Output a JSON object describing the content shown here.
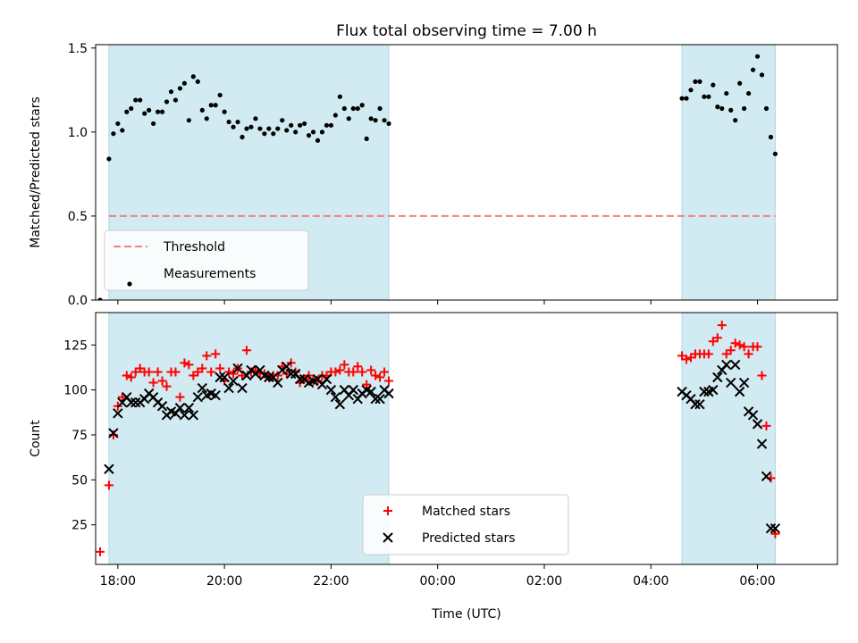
{
  "title": "Flux total observing time = 7.00 h",
  "xlabel": "Time (UTC)",
  "x_ticks": [
    "18:00",
    "20:00",
    "22:00",
    "00:00",
    "02:00",
    "04:00",
    "06:00"
  ],
  "shade_color": "#add8e6",
  "chart_data": [
    {
      "type": "scatter",
      "ylabel": "Matched/Predicted stars",
      "xlim": [
        "17:35",
        "07:30"
      ],
      "ylim": [
        0,
        1.52
      ],
      "y_ticks": [
        0.0,
        0.5,
        1.0,
        1.5
      ],
      "y_tick_labels": [
        "0.0",
        "0.5",
        "1.0",
        "1.5"
      ],
      "shaded_intervals": [
        [
          "17:50",
          "23:05"
        ],
        [
          "04:35",
          "06:20"
        ]
      ],
      "legend_position": "lower-left",
      "threshold": {
        "name": "Threshold",
        "value": 0.5,
        "x_range": [
          "17:50",
          "06:20"
        ],
        "color": "#f08080",
        "style": "dashed"
      },
      "series": [
        {
          "name": "Measurements",
          "marker": "dot",
          "color": "#000000",
          "x": [
            "17:40",
            "17:50",
            "17:55",
            "18:00",
            "18:05",
            "18:10",
            "18:15",
            "18:20",
            "18:25",
            "18:30",
            "18:35",
            "18:40",
            "18:45",
            "18:50",
            "18:55",
            "19:00",
            "19:05",
            "19:10",
            "19:15",
            "19:20",
            "19:25",
            "19:30",
            "19:35",
            "19:40",
            "19:45",
            "19:50",
            "19:55",
            "20:00",
            "20:05",
            "20:10",
            "20:15",
            "20:20",
            "20:25",
            "20:30",
            "20:35",
            "20:40",
            "20:45",
            "20:50",
            "20:55",
            "21:00",
            "21:05",
            "21:10",
            "21:15",
            "21:20",
            "21:25",
            "21:30",
            "21:35",
            "21:40",
            "21:45",
            "21:50",
            "21:55",
            "22:00",
            "22:05",
            "22:10",
            "22:15",
            "22:20",
            "22:25",
            "22:30",
            "22:35",
            "22:40",
            "22:45",
            "22:50",
            "22:55",
            "23:00",
            "23:05",
            "04:35",
            "04:40",
            "04:45",
            "04:50",
            "04:55",
            "05:00",
            "05:05",
            "05:10",
            "05:15",
            "05:20",
            "05:25",
            "05:30",
            "05:35",
            "05:40",
            "05:45",
            "05:50",
            "05:55",
            "06:00",
            "06:05",
            "06:10",
            "06:15",
            "06:20"
          ],
          "y": [
            0.0,
            0.84,
            0.99,
            1.05,
            1.01,
            1.12,
            1.14,
            1.19,
            1.19,
            1.11,
            1.13,
            1.05,
            1.12,
            1.12,
            1.18,
            1.24,
            1.19,
            1.26,
            1.29,
            1.07,
            1.33,
            1.3,
            1.13,
            1.08,
            1.16,
            1.16,
            1.22,
            1.12,
            1.06,
            1.03,
            1.06,
            0.97,
            1.02,
            1.03,
            1.08,
            1.02,
            0.99,
            1.02,
            0.99,
            1.02,
            1.07,
            1.01,
            1.04,
            1.0,
            1.04,
            1.05,
            0.98,
            1.0,
            0.95,
            1.0,
            1.04,
            1.04,
            1.1,
            1.21,
            1.14,
            1.08,
            1.14,
            1.14,
            1.16,
            0.96,
            1.08,
            1.07,
            1.14,
            1.07,
            1.05,
            1.2,
            1.2,
            1.25,
            1.3,
            1.3,
            1.21,
            1.21,
            1.28,
            1.15,
            1.14,
            1.23,
            1.13,
            1.07,
            1.29,
            1.14,
            1.23,
            1.37,
            1.45,
            1.34,
            1.14,
            0.97,
            0.87
          ]
        }
      ]
    },
    {
      "type": "scatter",
      "ylabel": "Count",
      "xlim": [
        "17:35",
        "07:30"
      ],
      "ylim": [
        3,
        143
      ],
      "y_ticks": [
        25,
        50,
        75,
        100,
        125
      ],
      "y_tick_labels": [
        "25",
        "50",
        "75",
        "100",
        "125"
      ],
      "shaded_intervals": [
        [
          "17:50",
          "23:05"
        ],
        [
          "04:35",
          "06:20"
        ]
      ],
      "legend_position": "lower-center",
      "series": [
        {
          "name": "Matched stars",
          "marker": "plus",
          "color": "#ff0000",
          "x": [
            "17:40",
            "17:50",
            "17:55",
            "18:00",
            "18:05",
            "18:10",
            "18:15",
            "18:20",
            "18:25",
            "18:30",
            "18:35",
            "18:40",
            "18:45",
            "18:50",
            "18:55",
            "19:00",
            "19:05",
            "19:10",
            "19:15",
            "19:20",
            "19:25",
            "19:30",
            "19:35",
            "19:40",
            "19:45",
            "19:50",
            "19:55",
            "20:00",
            "20:05",
            "20:10",
            "20:15",
            "20:20",
            "20:25",
            "20:30",
            "20:35",
            "20:40",
            "20:45",
            "20:50",
            "20:55",
            "21:00",
            "21:05",
            "21:10",
            "21:15",
            "21:20",
            "21:25",
            "21:30",
            "21:35",
            "21:40",
            "21:45",
            "21:50",
            "21:55",
            "22:00",
            "22:05",
            "22:10",
            "22:15",
            "22:20",
            "22:25",
            "22:30",
            "22:35",
            "22:40",
            "22:45",
            "22:50",
            "22:55",
            "23:00",
            "23:05",
            "04:35",
            "04:40",
            "04:45",
            "04:50",
            "04:55",
            "05:00",
            "05:05",
            "05:10",
            "05:15",
            "05:20",
            "05:25",
            "05:30",
            "05:35",
            "05:40",
            "05:45",
            "05:50",
            "05:55",
            "06:00",
            "06:05",
            "06:10",
            "06:15",
            "06:20"
          ],
          "y": [
            10,
            47,
            75,
            91,
            96,
            108,
            107,
            110,
            112,
            110,
            110,
            104,
            110,
            105,
            102,
            110,
            110,
            96,
            115,
            114,
            108,
            110,
            112,
            119,
            110,
            120,
            112,
            105,
            110,
            109,
            112,
            108,
            122,
            110,
            111,
            109,
            109,
            107,
            108,
            108,
            113,
            109,
            115,
            110,
            104,
            106,
            108,
            105,
            105,
            108,
            108,
            110,
            110,
            111,
            114,
            110,
            110,
            113,
            110,
            103,
            111,
            108,
            107,
            110,
            105,
            119,
            117,
            118,
            120,
            120,
            120,
            120,
            127,
            129,
            136,
            120,
            122,
            126,
            125,
            124,
            120,
            124,
            124,
            108,
            80,
            51,
            20
          ]
        },
        {
          "name": "Predicted stars",
          "marker": "x",
          "color": "#000000",
          "x": [
            "17:50",
            "17:55",
            "18:00",
            "18:05",
            "18:10",
            "18:15",
            "18:20",
            "18:25",
            "18:30",
            "18:35",
            "18:40",
            "18:45",
            "18:50",
            "18:55",
            "19:00",
            "19:05",
            "19:10",
            "19:15",
            "19:20",
            "19:25",
            "19:30",
            "19:35",
            "19:40",
            "19:45",
            "19:50",
            "19:55",
            "20:00",
            "20:05",
            "20:10",
            "20:15",
            "20:20",
            "20:25",
            "20:30",
            "20:35",
            "20:40",
            "20:45",
            "20:50",
            "20:55",
            "21:00",
            "21:05",
            "21:10",
            "21:15",
            "21:20",
            "21:25",
            "21:30",
            "21:35",
            "21:40",
            "21:45",
            "21:50",
            "21:55",
            "22:00",
            "22:05",
            "22:10",
            "22:15",
            "22:20",
            "22:25",
            "22:30",
            "22:35",
            "22:40",
            "22:45",
            "22:50",
            "22:55",
            "23:00",
            "23:05",
            "04:35",
            "04:40",
            "04:45",
            "04:50",
            "04:55",
            "05:00",
            "05:05",
            "05:10",
            "05:15",
            "05:20",
            "05:25",
            "05:30",
            "05:35",
            "05:40",
            "05:45",
            "05:50",
            "05:55",
            "06:00",
            "06:05",
            "06:10",
            "06:15",
            "06:20"
          ],
          "y": [
            56,
            76,
            87,
            93,
            96,
            93,
            93,
            93,
            95,
            98,
            96,
            93,
            91,
            86,
            88,
            87,
            90,
            86,
            90,
            86,
            96,
            101,
            97,
            98,
            97,
            107,
            107,
            101,
            105,
            112,
            101,
            108,
            111,
            109,
            111,
            108,
            107,
            107,
            104,
            111,
            113,
            109,
            109,
            106,
            106,
            104,
            105,
            106,
            103,
            106,
            100,
            96,
            92,
            100,
            97,
            100,
            95,
            98,
            100,
            99,
            95,
            95,
            100,
            98,
            99,
            97,
            95,
            92,
            92,
            99,
            99,
            100,
            107,
            111,
            114,
            104,
            114,
            99,
            104,
            88,
            86,
            81,
            70,
            52,
            23,
            23
          ]
        }
      ]
    }
  ]
}
